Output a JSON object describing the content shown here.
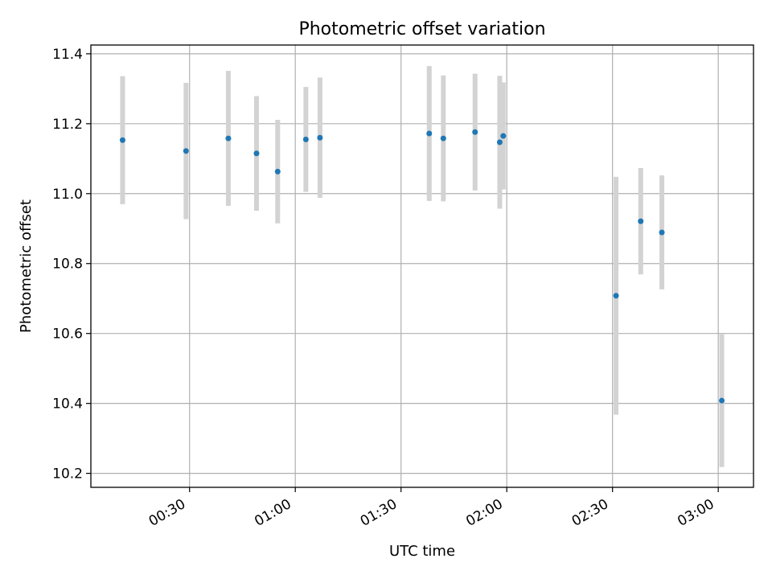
{
  "chart_data": {
    "type": "scatter",
    "title": "Photometric offset variation",
    "xlabel": "UTC time",
    "ylabel": "Photometric offset",
    "xlim": [
      "00:02",
      "03:10"
    ],
    "ylim": [
      10.16,
      11.425
    ],
    "grid": true,
    "x_ticks": [
      "00:30",
      "01:00",
      "01:30",
      "02:00",
      "02:30",
      "03:00"
    ],
    "y_ticks": [
      10.2,
      10.4,
      10.6,
      10.8,
      11.0,
      11.2,
      11.4
    ],
    "y_tick_labels": [
      "10.2",
      "10.4",
      "10.6",
      "10.8",
      "11.0",
      "11.2",
      "11.4"
    ],
    "point_color": "#1f77b4",
    "errorbar_color": "#d3d3d3",
    "points": [
      {
        "x": "00:11",
        "y": 11.153,
        "yerr": 0.183
      },
      {
        "x": "00:29",
        "y": 11.122,
        "yerr": 0.195
      },
      {
        "x": "00:41",
        "y": 11.158,
        "yerr": 0.193
      },
      {
        "x": "00:49",
        "y": 11.115,
        "yerr": 0.164
      },
      {
        "x": "00:55",
        "y": 11.063,
        "yerr": 0.148
      },
      {
        "x": "01:03",
        "y": 11.155,
        "yerr": 0.15
      },
      {
        "x": "01:07",
        "y": 11.16,
        "yerr": 0.172
      },
      {
        "x": "01:38",
        "y": 11.172,
        "yerr": 0.193
      },
      {
        "x": "01:42",
        "y": 11.158,
        "yerr": 0.18
      },
      {
        "x": "01:51",
        "y": 11.176,
        "yerr": 0.167
      },
      {
        "x": "01:58",
        "y": 11.147,
        "yerr": 0.19
      },
      {
        "x": "01:59",
        "y": 11.165,
        "yerr": 0.153
      },
      {
        "x": "02:31",
        "y": 10.708,
        "yerr": 0.34
      },
      {
        "x": "02:38",
        "y": 10.921,
        "yerr": 0.152
      },
      {
        "x": "02:44",
        "y": 10.889,
        "yerr": 0.163
      },
      {
        "x": "03:01",
        "y": 10.408,
        "yerr": 0.19
      }
    ]
  }
}
